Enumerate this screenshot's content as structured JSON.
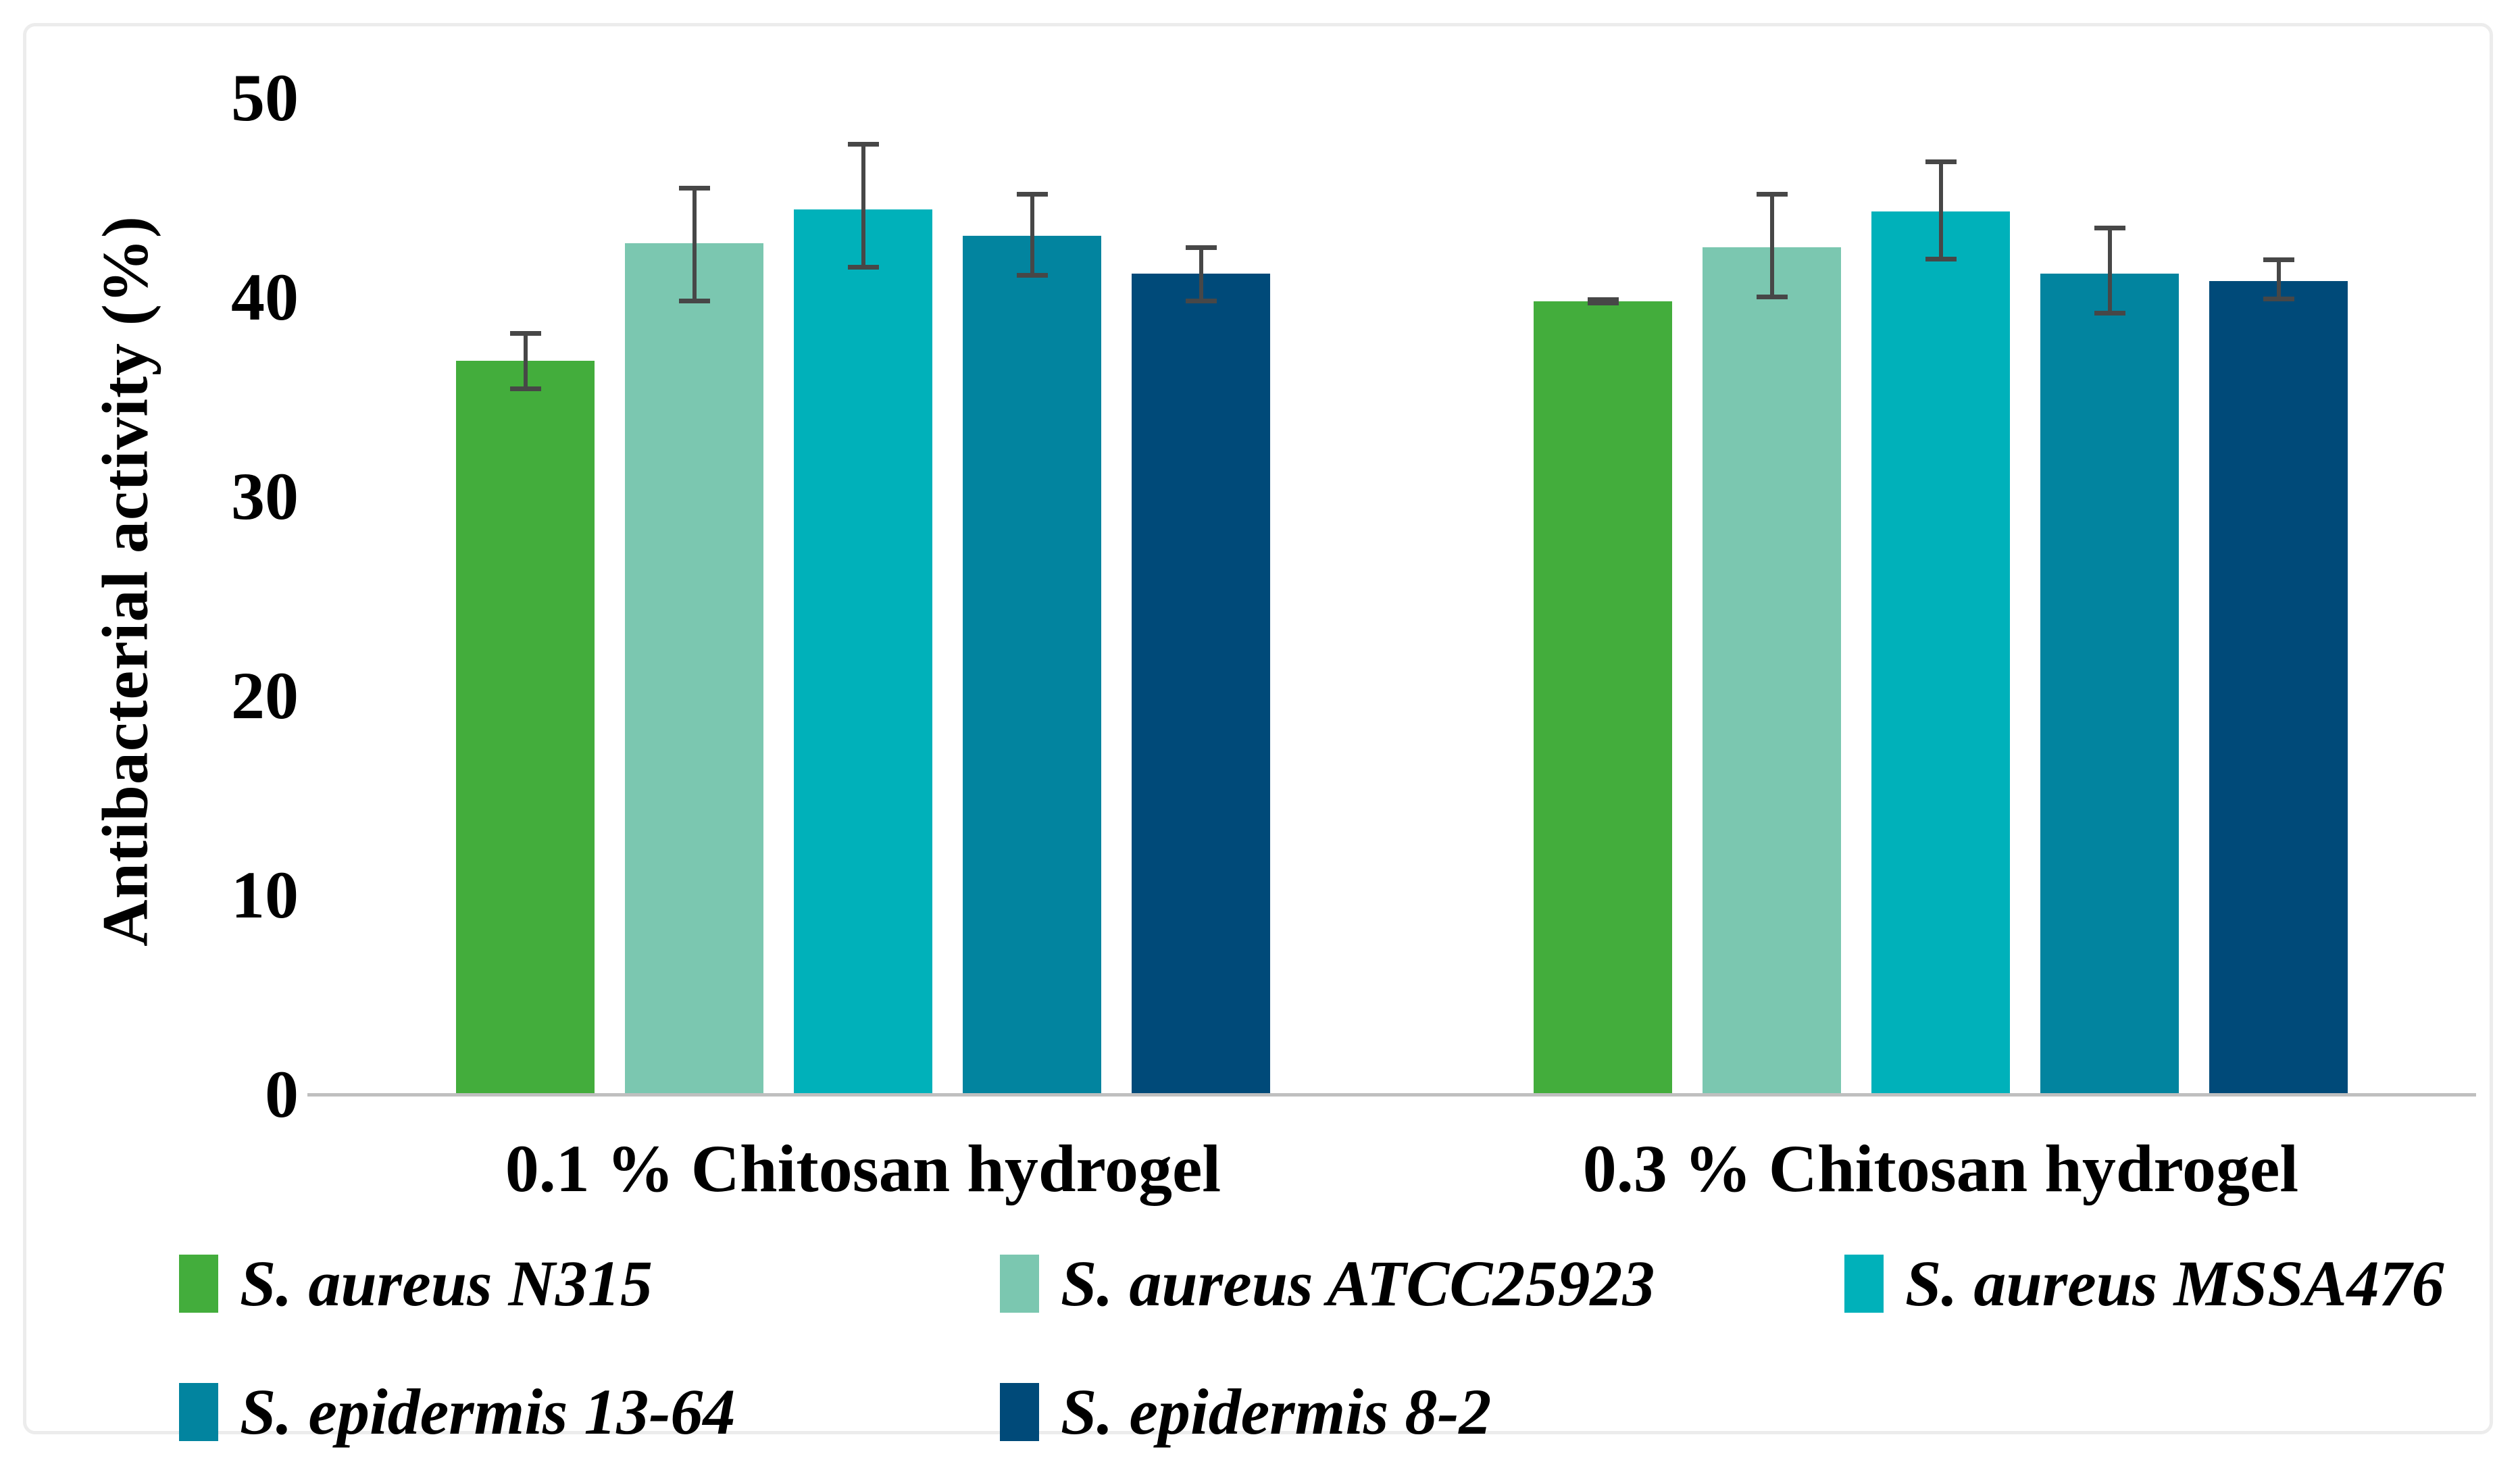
{
  "figure": {
    "background": "#ffffff",
    "frame_border_color": "#ececec"
  },
  "chart_data": {
    "type": "bar",
    "title": "",
    "xlabel": "",
    "ylabel": "Antibacterial activity (%)",
    "ylim": [
      0,
      50
    ],
    "yticks": [
      0,
      10,
      20,
      30,
      40,
      50
    ],
    "grid": false,
    "legend_position": "bottom",
    "axis_line_color": "#bfbfbf",
    "error_bar_color": "#474747",
    "categories": [
      "0.1 % Chitosan hydrogel",
      "0.3 % Chitosan hydrogel"
    ],
    "series": [
      {
        "name": "S. aureus N315",
        "color": "#43ad3c",
        "values": [
          36.8,
          39.8
        ],
        "error_plus": [
          1.5,
          0.2
        ],
        "error_minus": [
          1.5,
          0.2
        ]
      },
      {
        "name": "S. aureus ATCC25923",
        "color": "#7bc7b0",
        "values": [
          42.7,
          42.5
        ],
        "error_plus": [
          2.9,
          2.8
        ],
        "error_minus": [
          3.0,
          2.6
        ]
      },
      {
        "name": "S. aureus MSSA476",
        "color": "#00b1ba",
        "values": [
          44.4,
          44.3
        ],
        "error_plus": [
          3.4,
          2.6
        ],
        "error_minus": [
          3.0,
          2.5
        ]
      },
      {
        "name": "S. epidermis 13-64",
        "color": "#02849f",
        "values": [
          43.1,
          41.2
        ],
        "error_plus": [
          2.2,
          2.4
        ],
        "error_minus": [
          2.1,
          2.1
        ]
      },
      {
        "name": "S. epidermis 8-2",
        "color": "#004a79",
        "values": [
          41.2,
          40.8
        ],
        "error_plus": [
          1.4,
          1.2
        ],
        "error_minus": [
          1.5,
          1.0
        ]
      }
    ]
  }
}
